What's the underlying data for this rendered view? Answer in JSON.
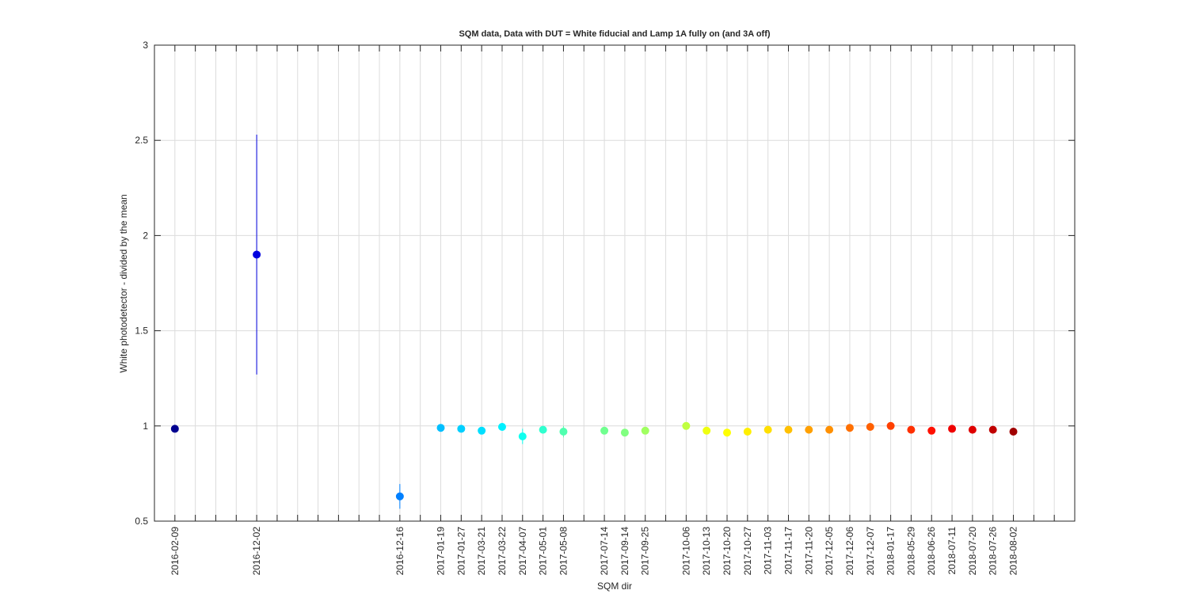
{
  "chart_data": {
    "type": "errorbar-scatter",
    "title": "SQM data, Data with DUT = White fiducial and Lamp 1A fully on (and 3A off)",
    "x_label": "SQM dir",
    "y_label": "White photodetector - divided by the mean",
    "categories": [
      "2016-02-09",
      null,
      null,
      null,
      "2016-12-02",
      null,
      null,
      null,
      null,
      null,
      null,
      "2016-12-16",
      null,
      "2017-01-19",
      "2017-01-27",
      "2017-03-21",
      "2017-03-22",
      "2017-04-07",
      "2017-05-01",
      "2017-05-08",
      null,
      "2017-07-14",
      "2017-09-14",
      "2017-09-25",
      null,
      "2017-10-06",
      "2017-10-13",
      "2017-10-20",
      "2017-10-27",
      "2017-11-03",
      "2017-11-17",
      "2017-11-20",
      "2017-12-05",
      "2017-12-06",
      "2017-12-07",
      "2018-01-17",
      "2018-05-29",
      "2018-06-26",
      "2018-07-11",
      "2018-07-20",
      "2018-07-26",
      "2018-08-02",
      null,
      null
    ],
    "xticks": [
      1,
      2,
      3,
      4,
      5,
      6,
      7,
      8,
      9,
      10,
      11,
      12,
      13,
      14,
      15,
      16,
      17,
      18,
      19,
      20,
      21,
      22,
      23,
      24,
      25,
      26,
      27,
      28,
      29,
      30,
      31,
      32,
      33,
      34,
      35,
      36,
      37,
      38,
      39,
      40,
      41,
      42,
      43,
      44
    ],
    "xlim": [
      0,
      45
    ],
    "ylim": [
      0.5,
      3
    ],
    "yticks": [
      0.5,
      1,
      1.5,
      2,
      2.5,
      3
    ],
    "grid": true,
    "series": [
      {
        "values": [
          0.985,
          null,
          null,
          null,
          1.9,
          null,
          null,
          null,
          null,
          null,
          null,
          0.63,
          null,
          0.99,
          0.985,
          0.975,
          0.995,
          0.945,
          0.98,
          0.97,
          null,
          0.975,
          0.965,
          0.975,
          null,
          1.0,
          0.975,
          0.965,
          0.97,
          0.98,
          0.98,
          0.98,
          0.98,
          0.99,
          0.995,
          1.0,
          0.98,
          0.975,
          0.985,
          0.98,
          0.98,
          0.97,
          null,
          null
        ],
        "errors": [
          0.01,
          null,
          null,
          null,
          0.63,
          null,
          null,
          null,
          null,
          null,
          null,
          0.065,
          null,
          0.01,
          0.01,
          0.01,
          0.01,
          0.04,
          0.01,
          0.03,
          null,
          0.01,
          0.01,
          0.01,
          null,
          0.01,
          0.01,
          0.01,
          0.01,
          0.01,
          0.01,
          0.01,
          0.02,
          0.01,
          0.01,
          0.01,
          0.01,
          0.01,
          0.01,
          0.01,
          0.01,
          0.01,
          null,
          null
        ],
        "colors": [
          "#000090",
          null,
          null,
          null,
          "#0000df",
          null,
          null,
          null,
          null,
          null,
          null,
          "#0080ff",
          null,
          "#00bfff",
          "#00cfff",
          "#00dfff",
          "#00f0ff",
          "#10ffef",
          "#30ffcf",
          "#50ffaf",
          null,
          "#70ff8f",
          "#80ff80",
          "#a0ff60",
          null,
          "#c0ff40",
          "#efff10",
          "#ffff00",
          "#ffef00",
          "#ffdf00",
          "#ffc000",
          "#ffa000",
          "#ff9000",
          "#ff7000",
          "#ff6000",
          "#ff4000",
          "#ff3000",
          "#ff1000",
          "#ef0000",
          "#df0000",
          "#c00000",
          "#a00000",
          null,
          null
        ]
      }
    ]
  }
}
